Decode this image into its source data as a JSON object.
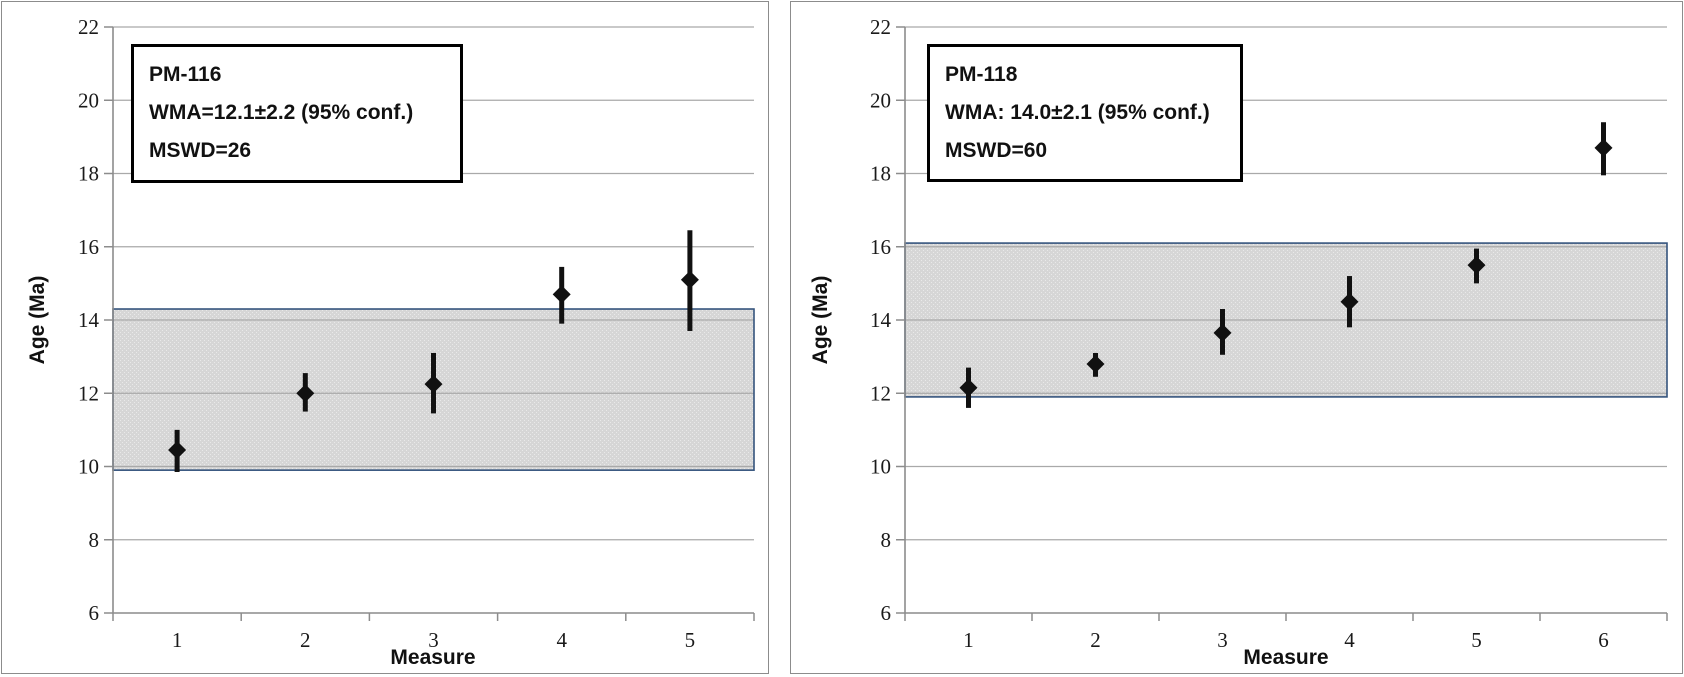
{
  "figure": {
    "background": "#ffffff",
    "panel_border_color": "#8c8c8c"
  },
  "style": {
    "marker_color": "#111111",
    "error_bar_color": "#111111",
    "band_fill": "#d6d6d6",
    "band_dot": "#e9e9e9",
    "band_border": "#35547d",
    "gridline_color": "#a9a9a9",
    "axis_color": "#8c8c8c",
    "tick_text_color": "#1a1a1a"
  },
  "chart_data": [
    {
      "type": "scatter",
      "title": "PM-116",
      "label_box": {
        "sample_id": "PM-116",
        "wma_line": "WMA=12.1±2.2 (95% conf.)",
        "mswd_line": "MSWD=26"
      },
      "xlabel": "Measure",
      "ylabel": "Age (Ma)",
      "ylim": [
        6,
        22
      ],
      "yticks": [
        6,
        8,
        10,
        12,
        14,
        16,
        18,
        20,
        22
      ],
      "categories": [
        "1",
        "2",
        "3",
        "4",
        "5"
      ],
      "grid": true,
      "legend": "none",
      "band": {
        "low": 9.9,
        "high": 14.3
      },
      "points": [
        {
          "x": 1,
          "y": 10.45,
          "y_lo": 9.85,
          "y_hi": 11.0
        },
        {
          "x": 2,
          "y": 12.0,
          "y_lo": 11.5,
          "y_hi": 12.55
        },
        {
          "x": 3,
          "y": 12.25,
          "y_lo": 11.45,
          "y_hi": 13.1
        },
        {
          "x": 4,
          "y": 14.7,
          "y_lo": 13.9,
          "y_hi": 15.45
        },
        {
          "x": 5,
          "y": 15.1,
          "y_lo": 13.7,
          "y_hi": 16.45
        }
      ]
    },
    {
      "type": "scatter",
      "title": "PM-118",
      "label_box": {
        "sample_id": "PM-118",
        "wma_line": "WMA: 14.0±2.1 (95% conf.)",
        "mswd_line": "MSWD=60"
      },
      "xlabel": "Measure",
      "ylabel": "Age (Ma)",
      "ylim": [
        6,
        22
      ],
      "yticks": [
        6,
        8,
        10,
        12,
        14,
        16,
        18,
        20,
        22
      ],
      "categories": [
        "1",
        "2",
        "3",
        "4",
        "5",
        "6"
      ],
      "grid": true,
      "legend": "none",
      "band": {
        "low": 11.9,
        "high": 16.1
      },
      "points": [
        {
          "x": 1,
          "y": 12.15,
          "y_lo": 11.6,
          "y_hi": 12.7
        },
        {
          "x": 2,
          "y": 12.8,
          "y_lo": 12.45,
          "y_hi": 13.1
        },
        {
          "x": 3,
          "y": 13.65,
          "y_lo": 13.05,
          "y_hi": 14.3
        },
        {
          "x": 4,
          "y": 14.5,
          "y_lo": 13.8,
          "y_hi": 15.2
        },
        {
          "x": 5,
          "y": 15.5,
          "y_lo": 15.0,
          "y_hi": 15.95
        },
        {
          "x": 6,
          "y": 18.7,
          "y_lo": 17.95,
          "y_hi": 19.4
        }
      ]
    }
  ]
}
